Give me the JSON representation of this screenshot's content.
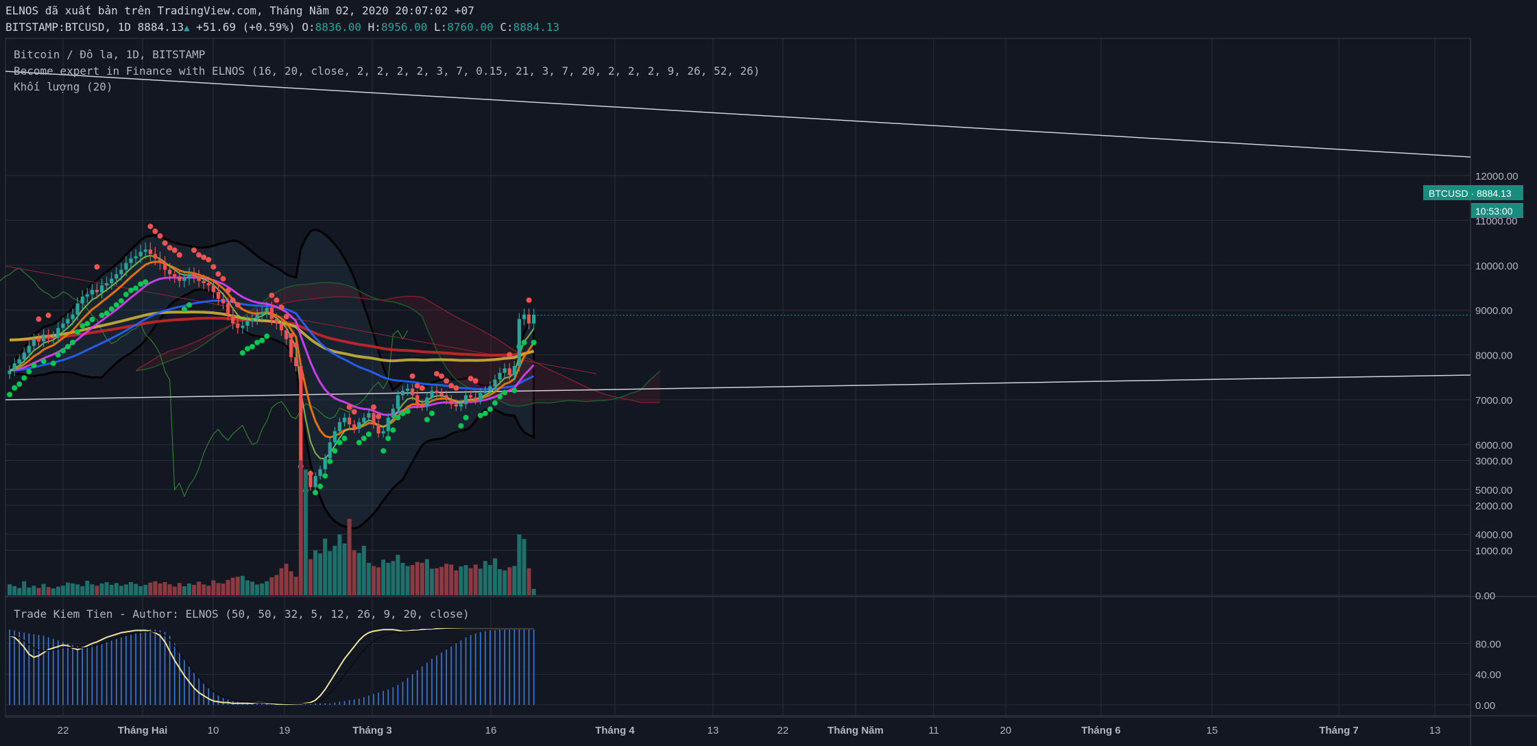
{
  "header": {
    "line1": "ELNOS đã xuất bản trên TradingView.com, Tháng Năm 02, 2020 20:07:02 +07",
    "symbol": "BITSTAMP:BTCUSD, 1D",
    "last": "8884.13",
    "change": "+51.69 (+0.59%)",
    "o_label": "O:",
    "o_value": "8836.00",
    "h_label": "H:",
    "h_value": "8956.00",
    "l_label": "L:",
    "l_value": "8760.00",
    "c_label": "C:",
    "c_value": "8884.13"
  },
  "legend": {
    "title": "Bitcoin / Đô la, 1D, BITSTAMP",
    "indicator": "Become expert in Finance with ELNOS (16, 20, close, 2, 2, 2, 2, 3, 7, 0.15, 21, 3, 7, 20, 2, 2, 2, 9, 26, 52, 26)",
    "volume": "Khối lượng (20)",
    "oscillator": "Trade Kiem Tien - Author: ELNOS (50, 50, 32, 5, 12, 26, 9, 20, close)"
  },
  "price_badge": {
    "label": "BTCUSD · 8884.13",
    "timer": "10:53:00"
  },
  "colors": {
    "bg": "#131722",
    "up": "#26a69a",
    "down": "#ef5350",
    "grid": "#2a2e39",
    "badge": "#1a8c7e"
  },
  "chart_data": {
    "type": "candlestick",
    "price_axis": {
      "ticks": [
        4000,
        5000,
        6000,
        7000,
        8000,
        9000,
        10000,
        11000,
        12000
      ],
      "labels": [
        "4000.00",
        "5000.00",
        "6000.00",
        "7000.00",
        "8000.00",
        "9000.00",
        "10000.00",
        "11000.00",
        "12000.00"
      ]
    },
    "volume_axis": {
      "ticks": [
        0,
        1000,
        2000,
        3000
      ],
      "labels": [
        "0.00",
        "1000.00",
        "2000.00",
        "3000.00"
      ]
    },
    "osc_axis": {
      "ticks": [
        0,
        40,
        80
      ],
      "labels": [
        "0.00",
        "40.00",
        "80.00"
      ]
    },
    "x_ticks": [
      "22",
      "Tháng Hai",
      "10",
      "19",
      "Tháng 3",
      "16",
      "Tháng 4",
      "13",
      "22",
      "Tháng Năm",
      "11",
      "20",
      "Tháng 6",
      "15",
      "Tháng 7",
      "13"
    ],
    "close": [
      7650,
      7810,
      7900,
      8050,
      8200,
      8350,
      8300,
      8450,
      8380,
      8400,
      8600,
      8700,
      8800,
      8900,
      9150,
      9300,
      9350,
      9450,
      9400,
      9550,
      9600,
      9700,
      9800,
      9900,
      10050,
      10150,
      10200,
      10300,
      10350,
      10250,
      10150,
      10050,
      9900,
      9800,
      9750,
      9650,
      9700,
      9800,
      9750,
      9650,
      9600,
      9550,
      9400,
      9250,
      9150,
      8900,
      8700,
      8600,
      8650,
      8750,
      8800,
      8900,
      8950,
      9050,
      8800,
      8700,
      8550,
      8350,
      7950,
      7750,
      5200,
      5350,
      5050,
      5300,
      5450,
      5700,
      6050,
      6300,
      6500,
      6600,
      6450,
      6350,
      6500,
      6600,
      6700,
      6450,
      6250,
      6300,
      6600,
      6800,
      7100,
      7200,
      7250,
      7100,
      6900,
      6850,
      7050,
      7200,
      7150,
      7100,
      7000,
      6900,
      6850,
      6900,
      7100,
      7050,
      7000,
      7150,
      7200,
      7300,
      7450,
      7600,
      7700,
      7550,
      7750,
      8800,
      8900,
      8700,
      8900
    ],
    "volume": [
      240,
      200,
      160,
      310,
      170,
      210,
      160,
      250,
      180,
      150,
      190,
      210,
      280,
      260,
      240,
      200,
      320,
      240,
      210,
      260,
      290,
      230,
      270,
      210,
      240,
      290,
      250,
      200,
      230,
      280,
      310,
      260,
      290,
      240,
      190,
      270,
      200,
      260,
      230,
      300,
      240,
      210,
      330,
      270,
      260,
      340,
      390,
      410,
      430,
      330,
      300,
      240,
      260,
      310,
      400,
      450,
      600,
      700,
      530,
      410,
      3000,
      2800,
      800,
      1000,
      930,
      1260,
      980,
      1100,
      1350,
      1150,
      1700,
      1000,
      940,
      1100,
      720,
      650,
      620,
      790,
      720,
      760,
      900,
      720,
      650,
      670,
      740,
      720,
      800,
      590,
      600,
      630,
      700,
      680,
      550,
      640,
      670,
      600,
      680,
      590,
      760,
      670,
      820,
      580,
      550,
      620,
      650,
      1350,
      1250,
      600,
      140
    ],
    "oscillator": [
      98,
      97,
      95,
      94,
      93,
      92,
      91,
      90,
      88,
      86,
      84,
      82,
      80,
      78,
      76,
      76,
      77,
      78,
      79,
      80,
      82,
      84,
      86,
      88,
      90,
      92,
      94,
      96,
      97,
      98,
      98,
      97,
      95,
      90,
      80,
      70,
      60,
      50,
      42,
      35,
      28,
      22,
      16,
      12,
      9,
      7,
      5,
      4,
      3,
      3,
      2,
      2,
      2,
      2,
      2,
      2,
      2,
      2,
      2,
      2,
      2,
      2,
      2,
      2,
      2,
      2,
      2,
      3,
      4,
      5,
      6,
      7,
      8,
      10,
      12,
      14,
      16,
      18,
      20,
      23,
      26,
      30,
      35,
      40,
      45,
      50,
      55,
      60,
      64,
      68,
      72,
      76,
      80,
      84,
      88,
      91,
      93,
      95,
      96,
      97,
      97,
      98,
      98,
      98,
      98,
      98,
      98,
      98,
      98
    ],
    "signal": [
      90,
      88,
      82,
      75,
      66,
      62,
      64,
      68,
      72,
      74,
      76,
      78,
      77,
      74,
      72,
      74,
      77,
      80,
      82,
      85,
      88,
      90,
      92,
      94,
      95,
      96,
      97,
      97,
      97,
      96,
      94,
      90,
      82,
      70,
      58,
      48,
      38,
      30,
      22,
      16,
      12,
      8,
      5,
      4,
      3,
      3,
      2,
      2,
      2,
      2,
      2,
      3,
      3,
      2,
      2,
      1,
      1,
      1,
      1,
      1,
      1,
      2,
      3,
      6,
      12,
      20,
      30,
      40,
      50,
      60,
      68,
      76,
      84,
      90,
      94,
      96,
      97,
      98,
      98,
      98,
      97,
      96,
      96,
      97,
      97,
      98,
      98,
      98,
      99,
      99,
      99,
      99,
      99,
      99,
      99,
      99,
      99,
      99,
      99,
      99,
      99,
      99,
      99,
      99,
      99,
      99,
      99,
      99,
      99
    ]
  }
}
